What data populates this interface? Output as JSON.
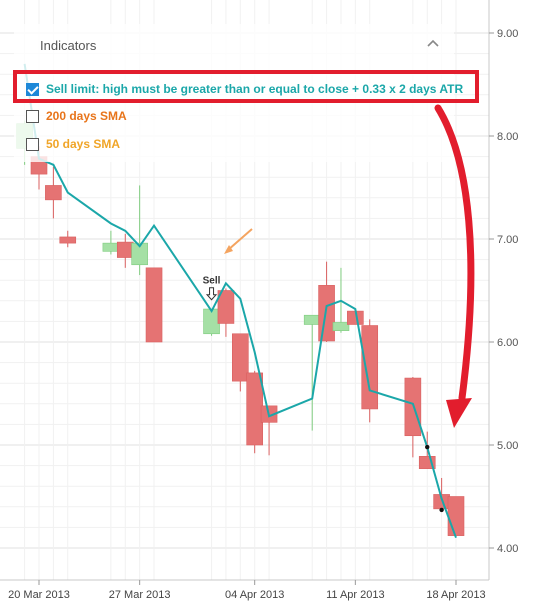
{
  "panel": {
    "title": "Indicators",
    "indicators": [
      {
        "label": "Sell limit: high must be greater than or equal to close + 0.33 x 2 days ATR",
        "checked": true,
        "color": "#1ba7a9"
      },
      {
        "label": "200 days SMA",
        "checked": false,
        "color": "#e8741a"
      },
      {
        "label": "50 days SMA",
        "checked": false,
        "color": "#f0a528"
      }
    ]
  },
  "colors": {
    "bearish_candle": "#e57373",
    "bullish_candle": "#a5e0a5",
    "indicator_line": "#1ba7a9",
    "highlight": "#e21d2d",
    "orange_arrow": "#f4a460"
  },
  "chart_data": {
    "type": "candlestick",
    "title": "",
    "xlabel": "",
    "ylabel": "",
    "ylim": [
      3.75,
      9.2
    ],
    "y_ticks": [
      "9.00",
      "8.00",
      "7.00",
      "6.00",
      "5.00",
      "4.00"
    ],
    "x_tick_labels": [
      "20 Mar 2013",
      "27 Mar 2013",
      "04 Apr 2013",
      "11 Apr 2013",
      "18 Apr 2013"
    ],
    "candles": [
      {
        "date": "2013-03-19",
        "open": 7.88,
        "high": 8.15,
        "low": 7.72,
        "close": 8.12
      },
      {
        "date": "2013-03-20",
        "open": 7.8,
        "high": 7.9,
        "low": 7.48,
        "close": 7.63
      },
      {
        "date": "2013-03-21",
        "open": 7.52,
        "high": 7.7,
        "low": 7.2,
        "close": 7.38
      },
      {
        "date": "2013-03-22",
        "open": 7.02,
        "high": 7.08,
        "low": 6.92,
        "close": 6.96
      },
      {
        "date": "2013-03-25",
        "open": 6.88,
        "high": 7.08,
        "low": 6.85,
        "close": 6.96
      },
      {
        "date": "2013-03-26",
        "open": 6.97,
        "high": 7.05,
        "low": 6.72,
        "close": 6.82
      },
      {
        "date": "2013-03-27",
        "open": 6.75,
        "high": 7.52,
        "low": 6.65,
        "close": 6.96
      },
      {
        "date": "2013-03-28",
        "open": 6.72,
        "high": 6.72,
        "low": 6.0,
        "close": 6.0
      },
      {
        "date": "2013-04-01",
        "open": 6.08,
        "high": 6.32,
        "low": 6.06,
        "close": 6.32
      },
      {
        "date": "2013-04-02",
        "open": 6.5,
        "high": 6.52,
        "low": 6.05,
        "close": 6.18
      },
      {
        "date": "2013-04-03",
        "open": 6.08,
        "high": 6.08,
        "low": 5.52,
        "close": 5.62
      },
      {
        "date": "2013-04-04",
        "open": 5.7,
        "high": 5.72,
        "low": 4.92,
        "close": 5.0
      },
      {
        "date": "2013-04-05",
        "open": 5.38,
        "high": 5.38,
        "low": 4.9,
        "close": 5.22
      },
      {
        "date": "2013-04-08",
        "open": 6.17,
        "high": 6.26,
        "low": 5.14,
        "close": 6.26
      },
      {
        "date": "2013-04-09",
        "open": 6.55,
        "high": 6.78,
        "low": 6.0,
        "close": 6.01
      },
      {
        "date": "2013-04-10",
        "open": 6.11,
        "high": 6.72,
        "low": 6.09,
        "close": 6.19
      },
      {
        "date": "2013-04-11",
        "open": 6.3,
        "high": 6.32,
        "low": 6.17,
        "close": 6.17
      },
      {
        "date": "2013-04-12",
        "open": 6.16,
        "high": 6.22,
        "low": 5.22,
        "close": 5.35
      },
      {
        "date": "2013-04-15",
        "open": 5.65,
        "high": 5.66,
        "low": 4.88,
        "close": 5.09
      },
      {
        "date": "2013-04-16",
        "open": 4.89,
        "high": 5.13,
        "low": 4.77,
        "close": 4.77
      },
      {
        "date": "2013-04-17",
        "open": 4.52,
        "high": 4.68,
        "low": 4.35,
        "close": 4.38
      },
      {
        "date": "2013-04-18",
        "open": 4.5,
        "high": 4.5,
        "low": 4.12,
        "close": 4.12
      }
    ],
    "series": [
      {
        "values": [
          8.7,
          7.78,
          7.72,
          7.45,
          7.15,
          7.08,
          6.93,
          7.13,
          6.3,
          6.57,
          6.42,
          5.9,
          5.28,
          5.45,
          6.35,
          6.4,
          6.32,
          5.53,
          5.4,
          4.98,
          4.48,
          4.1
        ]
      }
    ],
    "annotations": [
      {
        "text": "Sell",
        "date": "2013-04-01",
        "y": 6.42
      }
    ],
    "grid": true
  }
}
